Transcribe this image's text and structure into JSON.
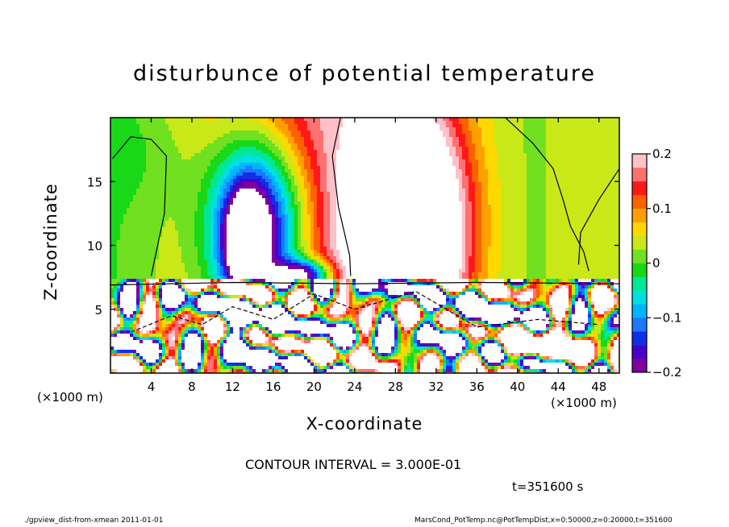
{
  "chart_data": {
    "type": "heatmap",
    "title": "disturbunce of potential temperature",
    "xlabel": "X-coordinate",
    "ylabel": "Z-coordinate",
    "x_unit_label": "(×1000 m)",
    "y_unit_label": "(×1000 m)",
    "xlim": [
      0,
      50
    ],
    "ylim": [
      0,
      20
    ],
    "x_ticks": [
      4,
      8,
      12,
      16,
      20,
      24,
      28,
      32,
      36,
      40,
      44,
      48
    ],
    "y_ticks": [
      5,
      10,
      15
    ],
    "colorbar": {
      "range": [
        -0.2,
        0.2
      ],
      "ticks": [
        0.2,
        0.1,
        0,
        -0.1,
        -0.2
      ],
      "tick_labels": [
        "0.2",
        "0.1",
        "0",
        "−0.1",
        "−0.2"
      ],
      "colors": [
        "#8000a0",
        "#4a00c8",
        "#1030e8",
        "#1c78ff",
        "#00b4ff",
        "#00e0e0",
        "#00e890",
        "#18d818",
        "#70e020",
        "#c8e818",
        "#ffd800",
        "#ffa000",
        "#ff6000",
        "#ff1818",
        "#ff7070",
        "#ffc0c8"
      ]
    },
    "layer_top_z": 7.3,
    "features": [
      {
        "kind": "negative-max",
        "x": 13.3,
        "z": 10.9,
        "value": -0.2
      },
      {
        "kind": "negative-max",
        "x": 19.0,
        "z": 8.3,
        "value": -0.2
      },
      {
        "kind": "positive-max",
        "x": 29.5,
        "z": 13.0,
        "value": 0.2
      },
      {
        "kind": "positive-max",
        "x": 29.5,
        "z": 9.0,
        "value": 0.2
      }
    ],
    "contour_interval": "CONTOUR INTERVAL = 3.000E-01",
    "time": "t=351600 s"
  },
  "footer": {
    "left": "./gpview_dist-from-xmean  2011-01-01",
    "right": "MarsCond_PotTemp.nc@PotTempDist,x=0:50000,z=0:20000,t=351600"
  }
}
